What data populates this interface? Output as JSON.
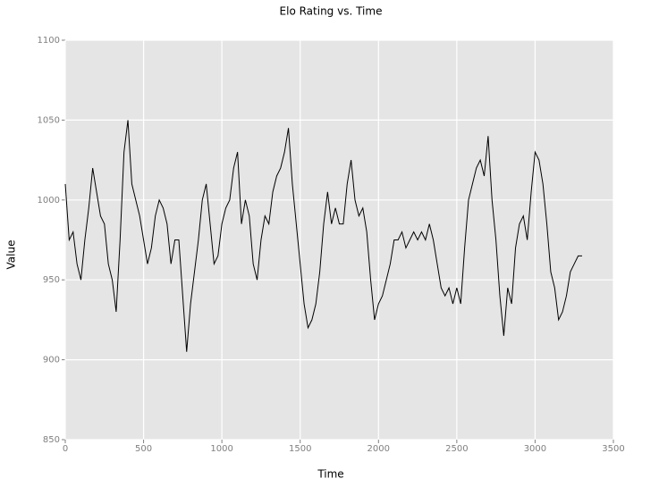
{
  "chart_data": {
    "type": "line",
    "title": "Elo Rating vs. Time",
    "x_label": "Time",
    "y_label": "Value",
    "xlim": [
      0,
      3500
    ],
    "xticks": [
      0,
      500,
      1000,
      1500,
      2000,
      2500,
      3000,
      3500
    ],
    "ylim": [
      850,
      1100
    ],
    "yticks": [
      850,
      900,
      950,
      1000,
      1050,
      1100
    ],
    "grid": true,
    "x": [
      0,
      25,
      50,
      75,
      100,
      125,
      150,
      175,
      200,
      225,
      250,
      275,
      300,
      325,
      350,
      375,
      400,
      425,
      450,
      475,
      500,
      525,
      550,
      575,
      600,
      625,
      650,
      675,
      700,
      725,
      750,
      775,
      800,
      825,
      850,
      875,
      900,
      925,
      950,
      975,
      1000,
      1025,
      1050,
      1075,
      1100,
      1125,
      1150,
      1175,
      1200,
      1225,
      1250,
      1275,
      1300,
      1325,
      1350,
      1375,
      1400,
      1425,
      1450,
      1475,
      1500,
      1525,
      1550,
      1575,
      1600,
      1625,
      1650,
      1675,
      1700,
      1725,
      1750,
      1775,
      1800,
      1825,
      1850,
      1875,
      1900,
      1925,
      1950,
      1975,
      2000,
      2025,
      2050,
      2075,
      2100,
      2125,
      2150,
      2175,
      2200,
      2225,
      2250,
      2275,
      2300,
      2325,
      2350,
      2375,
      2400,
      2425,
      2450,
      2475,
      2500,
      2525,
      2550,
      2575,
      2600,
      2625,
      2650,
      2675,
      2700,
      2725,
      2750,
      2775,
      2800,
      2825,
      2850,
      2875,
      2900,
      2925,
      2950,
      2975,
      3000,
      3025,
      3050,
      3075,
      3100,
      3125,
      3150,
      3175,
      3200,
      3225,
      3250,
      3275,
      3300
    ],
    "series": [
      {
        "color": "#000000",
        "values": [
          1010,
          975,
          980,
          960,
          950,
          975,
          995,
          1020,
          1005,
          990,
          985,
          960,
          950,
          930,
          975,
          1030,
          1050,
          1010,
          1000,
          990,
          975,
          960,
          970,
          990,
          1000,
          995,
          985,
          960,
          975,
          975,
          940,
          905,
          935,
          955,
          975,
          1000,
          1010,
          985,
          960,
          965,
          985,
          995,
          1000,
          1020,
          1030,
          985,
          1000,
          990,
          960,
          950,
          975,
          990,
          985,
          1005,
          1015,
          1020,
          1030,
          1045,
          1010,
          985,
          960,
          935,
          920,
          925,
          935,
          955,
          985,
          1005,
          985,
          995,
          985,
          985,
          1010,
          1025,
          1000,
          990,
          995,
          980,
          950,
          925,
          935,
          940,
          950,
          960,
          975,
          975,
          980,
          970,
          975,
          980,
          975,
          980,
          975,
          985,
          975,
          960,
          945,
          940,
          945,
          935,
          945,
          935,
          970,
          1000,
          1010,
          1020,
          1025,
          1015,
          1040,
          1000,
          975,
          940,
          915,
          945,
          935,
          970,
          985,
          990,
          975,
          1005,
          1030,
          1025,
          1010,
          985,
          955,
          945,
          925,
          930,
          940,
          955,
          960,
          965,
          965
        ]
      }
    ]
  }
}
